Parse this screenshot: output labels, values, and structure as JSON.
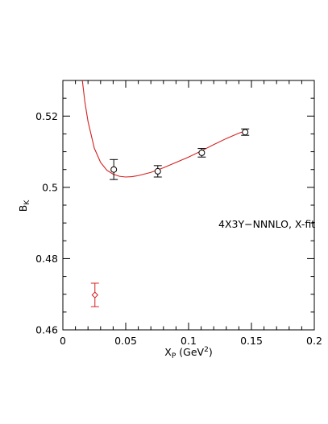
{
  "chart_data": {
    "type": "scatter",
    "title": "",
    "xlabel": {
      "main": "X",
      "sub": "P",
      "unit_prefix": " (GeV",
      "unit_sup": "2",
      "unit_suffix": ")"
    },
    "ylabel": {
      "main": "B",
      "sub": "K"
    },
    "xlim": [
      0,
      0.2
    ],
    "ylim": [
      0.46,
      0.53
    ],
    "x_ticks": [
      0,
      0.05,
      0.1,
      0.15,
      0.2
    ],
    "x_tick_labels": [
      "0",
      "0.05",
      "0.1",
      "0.15",
      "0.2"
    ],
    "y_ticks": [
      0.46,
      0.48,
      0.5,
      0.52
    ],
    "y_tick_labels": [
      "0.46",
      "0.48",
      "0.5",
      "0.52"
    ],
    "grid": false,
    "annotation": "4X3Y−NNNLO, X-fit",
    "series": [
      {
        "marker": "circle",
        "color": "#000000",
        "points": [
          {
            "x": 0.0405,
            "y": 0.505,
            "err": 0.0028
          },
          {
            "x": 0.0755,
            "y": 0.5045,
            "err": 0.0016
          },
          {
            "x": 0.1105,
            "y": 0.5097,
            "err": 0.0012
          },
          {
            "x": 0.145,
            "y": 0.5155,
            "err": 0.0009
          }
        ]
      },
      {
        "marker": "diamond",
        "color": "#d42020",
        "points": [
          {
            "x": 0.0255,
            "y": 0.4698,
            "err": 0.0033
          }
        ]
      }
    ],
    "fit_curve": {
      "color": "#d42020",
      "x_range": [
        0.0155,
        0.145
      ],
      "points": [
        [
          0.0155,
          0.53
        ],
        [
          0.0175,
          0.524
        ],
        [
          0.02,
          0.5185
        ],
        [
          0.025,
          0.511
        ],
        [
          0.03,
          0.507
        ],
        [
          0.035,
          0.5048
        ],
        [
          0.04,
          0.5037
        ],
        [
          0.045,
          0.5031
        ],
        [
          0.05,
          0.5029
        ],
        [
          0.055,
          0.503
        ],
        [
          0.06,
          0.5033
        ],
        [
          0.07,
          0.5042
        ],
        [
          0.08,
          0.5055
        ],
        [
          0.09,
          0.507
        ],
        [
          0.1,
          0.5085
        ],
        [
          0.11,
          0.5102
        ],
        [
          0.12,
          0.512
        ],
        [
          0.13,
          0.5137
        ],
        [
          0.14,
          0.5152
        ],
        [
          0.145,
          0.5158
        ]
      ]
    }
  }
}
